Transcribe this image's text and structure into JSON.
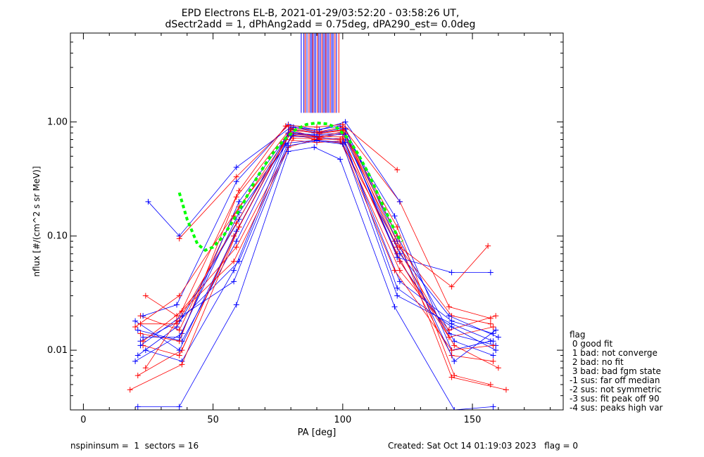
{
  "chart_data": {
    "type": "line",
    "title_line1": "EPD Electrons EL-B, 2021-01-29/03:52:20 - 03:58:26 UT,",
    "title_line2": "dSectr2add = 1, dPhAng2add = 0.75deg, dPA290_est=   0.0deg",
    "xlabel": "PA [deg]",
    "ylabel": "nflux [#/(cm^2 s sr MeV)]",
    "xlim": [
      -5,
      185
    ],
    "ylim": [
      0.003,
      6
    ],
    "yscale": "log",
    "x_ticks": [
      0,
      50,
      100,
      150
    ],
    "x_tick_labels": [
      "0",
      "50",
      "100",
      "150"
    ],
    "y_ticks": [
      0.01,
      0.1,
      1.0
    ],
    "y_tick_labels": [
      "0.01",
      "0.10",
      "1.00"
    ],
    "colors": {
      "red": "#ff0000",
      "blue": "#0000ff",
      "fit": "#00ff00"
    },
    "fit_curve": {
      "x": [
        37,
        40,
        44,
        47,
        50,
        54,
        58,
        62,
        66,
        70,
        74,
        78,
        82,
        86,
        90,
        94,
        98,
        102,
        106,
        110,
        114,
        118,
        121,
        123
      ],
      "y": [
        0.24,
        0.14,
        0.085,
        0.075,
        0.08,
        0.1,
        0.14,
        0.2,
        0.3,
        0.42,
        0.57,
        0.72,
        0.86,
        0.95,
        0.98,
        0.96,
        0.88,
        0.72,
        0.52,
        0.35,
        0.22,
        0.14,
        0.1,
        0.09
      ]
    },
    "vertical_lines": {
      "y_from": 1.2,
      "y_to": 6,
      "red_x": [
        85.5,
        87,
        88.5,
        90.3,
        92,
        93.5,
        95.2,
        97,
        98.5
      ],
      "blue_x": [
        84,
        85,
        86.2,
        87.6,
        88.1,
        89,
        89.6,
        90.8,
        91.4,
        92.5,
        93.1,
        94,
        94.6,
        95.8,
        96.3,
        97.6
      ]
    },
    "series": [
      {
        "color": "red",
        "x": [
          23,
          37,
          60,
          79,
          91,
          100,
          121,
          142,
          158
        ],
        "y": [
          0.011,
          0.009,
          0.12,
          0.78,
          0.7,
          0.72,
          0.07,
          0.009,
          0.008
        ]
      },
      {
        "color": "blue",
        "x": [
          21,
          38,
          59,
          80,
          90,
          101,
          122,
          141,
          159
        ],
        "y": [
          0.015,
          0.012,
          0.09,
          0.82,
          0.75,
          0.78,
          0.06,
          0.014,
          0.011
        ]
      },
      {
        "color": "red",
        "x": [
          22,
          37,
          58,
          78,
          90,
          99,
          120,
          142,
          157
        ],
        "y": [
          0.02,
          0.015,
          0.15,
          0.7,
          0.66,
          0.68,
          0.09,
          0.02,
          0.017
        ]
      },
      {
        "color": "blue",
        "x": [
          20,
          38,
          60,
          81,
          91,
          101,
          121,
          143,
          158
        ],
        "y": [
          0.008,
          0.014,
          0.2,
          0.9,
          0.8,
          0.86,
          0.1,
          0.012,
          0.009
        ]
      },
      {
        "color": "red",
        "x": [
          24,
          36,
          59,
          79,
          89,
          100,
          122,
          141,
          159
        ],
        "y": [
          0.03,
          0.02,
          0.08,
          0.6,
          0.7,
          0.65,
          0.05,
          0.015,
          0.02
        ]
      },
      {
        "color": "blue",
        "x": [
          22,
          37,
          60,
          80,
          90,
          100,
          122,
          142,
          158
        ],
        "y": [
          0.012,
          0.018,
          0.06,
          0.75,
          0.73,
          0.7,
          0.04,
          0.018,
          0.014
        ]
      },
      {
        "color": "red",
        "x": [
          21,
          38,
          58,
          80,
          91,
          101,
          121,
          143,
          160
        ],
        "y": [
          0.006,
          0.01,
          0.1,
          0.85,
          0.72,
          0.8,
          0.08,
          0.011,
          0.007
        ]
      },
      {
        "color": "blue",
        "x": [
          23,
          36,
          59,
          79,
          90,
          99,
          120,
          142,
          157
        ],
        "y": [
          0.02,
          0.025,
          0.3,
          0.95,
          0.85,
          0.92,
          0.15,
          0.01,
          0.012
        ]
      },
      {
        "color": "red",
        "x": [
          20,
          37,
          60,
          81,
          89,
          100,
          122,
          141,
          158
        ],
        "y": [
          0.016,
          0.03,
          0.18,
          0.76,
          0.74,
          0.74,
          0.06,
          0.013,
          0.016
        ]
      },
      {
        "color": "blue",
        "x": [
          24,
          38,
          58,
          78,
          90,
          101,
          121,
          142,
          159
        ],
        "y": [
          0.01,
          0.008,
          0.05,
          0.65,
          0.69,
          0.66,
          0.035,
          0.016,
          0.01
        ]
      },
      {
        "color": "red",
        "x": [
          22,
          37,
          59,
          80,
          91,
          100,
          121,
          143,
          157
        ],
        "y": [
          0.014,
          0.012,
          0.22,
          0.88,
          0.79,
          0.84,
          0.12,
          0.006,
          0.005
        ]
      },
      {
        "color": "blue",
        "x": [
          21,
          36,
          60,
          79,
          90,
          100,
          122,
          141,
          160
        ],
        "y": [
          0.009,
          0.016,
          0.14,
          0.8,
          0.77,
          0.8,
          0.07,
          0.02,
          0.013
        ]
      },
      {
        "color": "red",
        "x": [
          23,
          38,
          58,
          81,
          90,
          99,
          120,
          142,
          158
        ],
        "y": [
          0.012,
          0.022,
          0.06,
          0.72,
          0.71,
          0.7,
          0.05,
          0.01,
          0.011
        ]
      },
      {
        "color": "blue",
        "x": [
          20,
          37,
          59,
          80,
          89,
          101,
          121,
          143,
          159
        ],
        "y": [
          0.018,
          0.01,
          0.11,
          0.86,
          0.8,
          0.88,
          0.09,
          0.008,
          0.015
        ]
      },
      {
        "color": "red",
        "x": [
          24,
          36,
          60,
          78,
          91,
          100,
          122,
          141,
          157
        ],
        "y": [
          0.007,
          0.018,
          0.25,
          0.92,
          0.82,
          0.9,
          0.2,
          0.024,
          0.019
        ]
      },
      {
        "color": "blue",
        "x": [
          22,
          38,
          58,
          79,
          90,
          100,
          121,
          142,
          158
        ],
        "y": [
          0.011,
          0.02,
          0.04,
          0.62,
          0.68,
          0.64,
          0.03,
          0.017,
          0.012
        ]
      },
      {
        "color": "blue",
        "x": [
          25,
          37,
          59,
          80,
          91,
          101,
          122
        ],
        "y": [
          0.2,
          0.1,
          0.4,
          0.9,
          0.85,
          1.0,
          0.2
        ]
      },
      {
        "color": "red",
        "x": [
          37,
          59,
          79,
          90,
          100,
          121
        ],
        "y": [
          0.095,
          0.33,
          0.93,
          0.9,
          0.95,
          0.38
        ]
      },
      {
        "color": "blue",
        "x": [
          21,
          37,
          59,
          79,
          89,
          99,
          120,
          143,
          158
        ],
        "y": [
          0.0032,
          0.0032,
          0.025,
          0.55,
          0.6,
          0.47,
          0.024,
          0.003,
          0.0032
        ]
      },
      {
        "color": "red",
        "x": [
          18,
          38,
          60,
          80,
          90,
          100,
          121,
          142,
          163
        ],
        "y": [
          0.0045,
          0.0075,
          0.12,
          0.85,
          0.8,
          0.85,
          0.1,
          0.0058,
          0.0045
        ]
      },
      {
        "color": "blue",
        "x": [
          23,
          37,
          60,
          81,
          90,
          101,
          121,
          142,
          157
        ],
        "y": [
          0.013,
          0.013,
          0.16,
          0.78,
          0.75,
          0.78,
          0.065,
          0.048,
          0.048
        ]
      },
      {
        "color": "red",
        "x": [
          22,
          36,
          59,
          80,
          91,
          100,
          122,
          142,
          156
        ],
        "y": [
          0.017,
          0.017,
          0.13,
          0.8,
          0.74,
          0.82,
          0.08,
          0.036,
          0.082
        ]
      }
    ]
  },
  "legend": {
    "title": "flag",
    "items": [
      " 0 good fit",
      " 1 bad: not converge",
      " 2 bad: no fit",
      " 3 bad: bad fgm state",
      "-1 sus: far off median",
      "-2 sus: not symmetric",
      "-3 sus: fit peak off 90",
      "-4 sus: peaks high var"
    ]
  },
  "footer": {
    "left": "nspininsum =  1  sectors = 16",
    "right": "Created: Sat Oct 14 01:19:03 2023   flag = 0"
  }
}
